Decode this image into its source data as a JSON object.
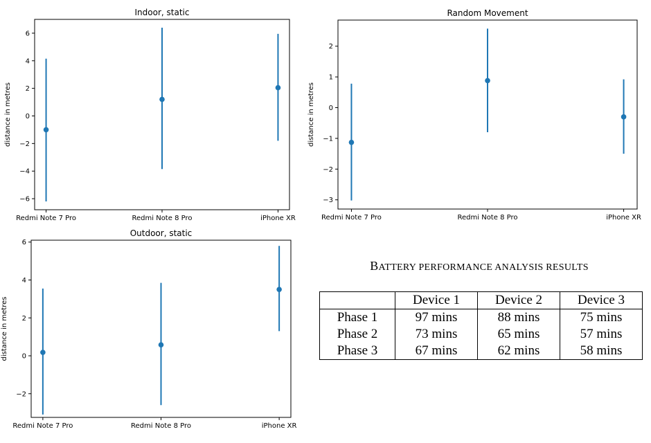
{
  "chart_data": [
    {
      "type": "scatter",
      "title": "Indoor, static",
      "xlabel": "",
      "ylabel": "distance in metres",
      "categories": [
        "Redmi Note 7 Pro",
        "Redmi Note 8 Pro",
        "iPhone XR"
      ],
      "values": [
        -1.0,
        1.2,
        2.05
      ],
      "error_low": [
        -6.2,
        -3.85,
        -1.8
      ],
      "error_high": [
        4.15,
        6.4,
        5.95
      ],
      "ylim": [
        -6.8,
        7.0
      ],
      "yticks": [
        -6,
        -4,
        -2,
        0,
        2,
        4,
        6
      ],
      "grid": false,
      "color": "#1f77b4"
    },
    {
      "type": "scatter",
      "title": "Random Movement",
      "xlabel": "",
      "ylabel": "distance in metres",
      "categories": [
        "Redmi Note 7 Pro",
        "Redmi Note 8 Pro",
        "iPhone XR"
      ],
      "values": [
        -1.13,
        0.88,
        -0.3
      ],
      "error_low": [
        -3.02,
        -0.8,
        -1.5
      ],
      "error_high": [
        0.78,
        2.57,
        0.92
      ],
      "ylim": [
        -3.3,
        2.85
      ],
      "yticks": [
        -3,
        -2,
        -1,
        0,
        1,
        2
      ],
      "grid": false,
      "color": "#1f77b4"
    },
    {
      "type": "scatter",
      "title": "Outdoor, static",
      "xlabel": "",
      "ylabel": "distance in metres",
      "categories": [
        "Redmi Note 7 Pro",
        "Redmi Note 8 Pro",
        "iPhone XR"
      ],
      "values": [
        0.18,
        0.58,
        3.5
      ],
      "error_low": [
        -3.1,
        -2.6,
        1.3
      ],
      "error_high": [
        3.55,
        3.85,
        5.8
      ],
      "ylim": [
        -3.25,
        6.1
      ],
      "yticks": [
        -2,
        0,
        2,
        4,
        6
      ],
      "grid": false,
      "color": "#1f77b4"
    },
    {
      "type": "table",
      "title": "Battery performance analysis results",
      "columns": [
        "",
        "Device 1",
        "Device 2",
        "Device 3"
      ],
      "rows": [
        [
          "Phase 1",
          "97 mins",
          "88 mins",
          "75 mins"
        ],
        [
          "Phase 2",
          "73 mins",
          "65 mins",
          "57 mins"
        ],
        [
          "Phase 3",
          "67 mins",
          "62 mins",
          "58 mins"
        ]
      ]
    }
  ],
  "table_title": {
    "part1_cap": "B",
    "part1_rest": "ATTERY PERFORMANCE ANALYSIS RESULTS"
  }
}
